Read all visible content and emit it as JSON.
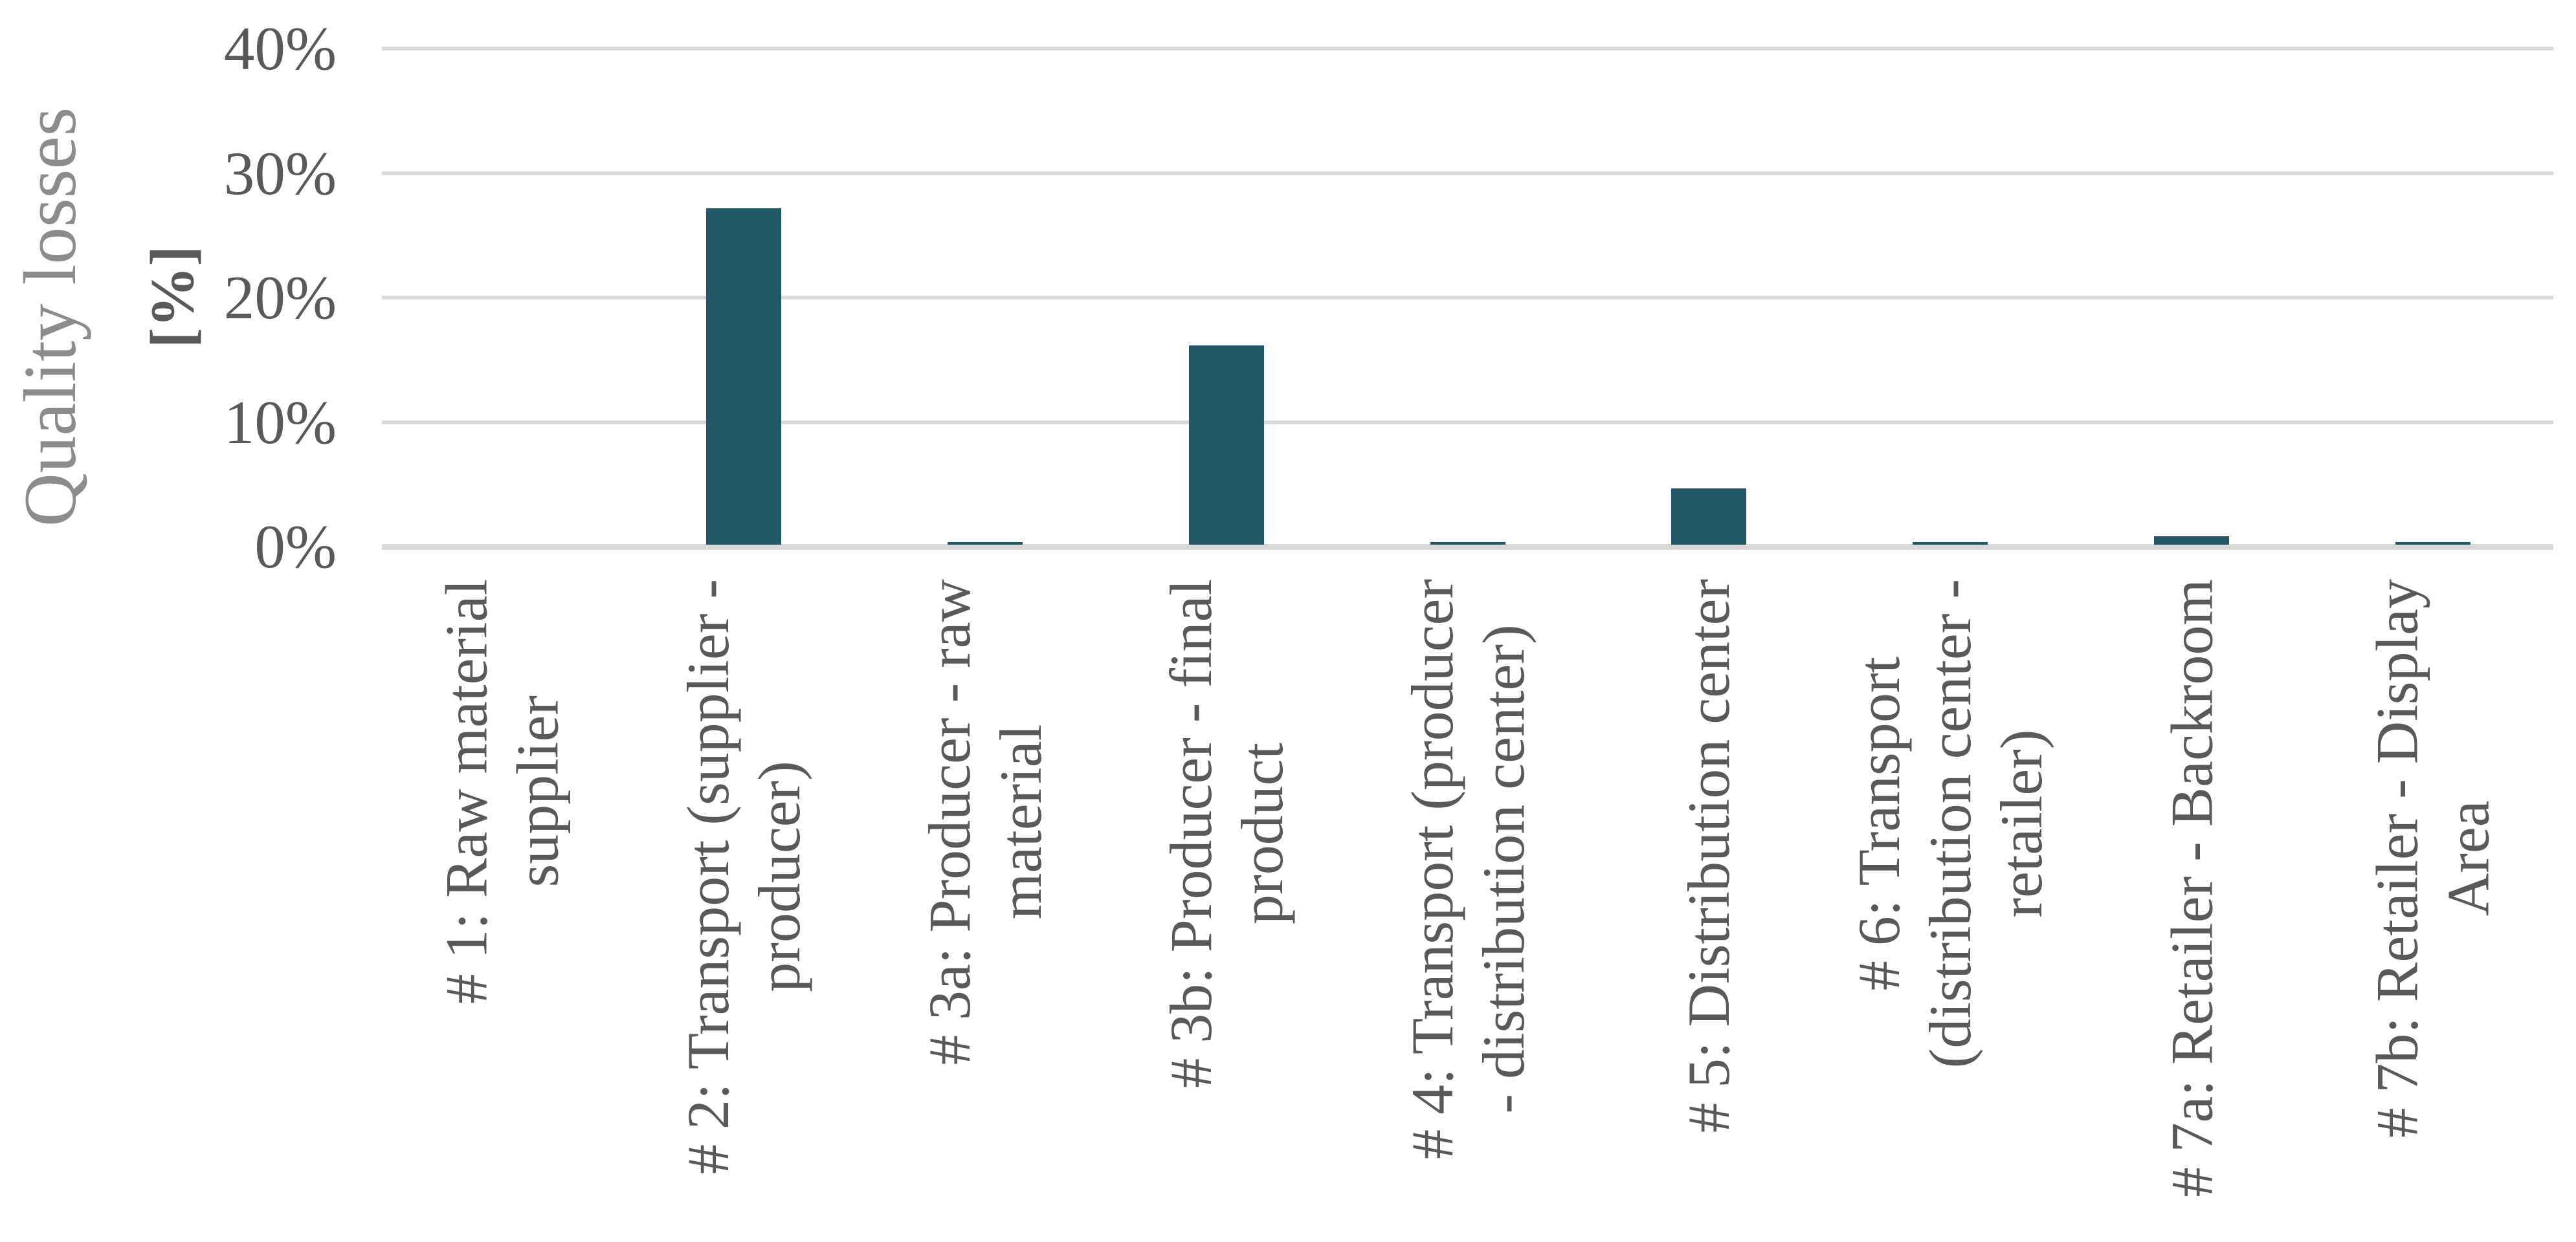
{
  "chart_data": {
    "type": "bar",
    "title": "",
    "ylabel": "Quality losses",
    "ylabel_unit": "[%]",
    "xlabel": "",
    "ylim": [
      0,
      40
    ],
    "ytick_step": 10,
    "ytick_labels": [
      "0%",
      "10%",
      "20%",
      "30%",
      "40%"
    ],
    "grid": true,
    "legend": "none",
    "bar_color": "#215A66",
    "gridline_color": "#D9D9D9",
    "tick_text_color": "#595959",
    "axis_title_color": "#8C8C8C",
    "categories": [
      "# 1: Raw material supplier",
      "# 2: Transport (supplier - producer)",
      "# 3a: Producer - raw material",
      "# 3b: Producer - final product",
      "# 4: Transport (producer - distribution center)",
      "# 5: Distribution center",
      "# 6: Transport (distribution center - retailer)",
      "# 7a: Retailer - Backroom",
      "# 7b: Retailer - Display Area"
    ],
    "category_display_lines": [
      [
        "# 1: Raw material",
        "supplier"
      ],
      [
        "# 2: Transport (supplier -",
        "producer)"
      ],
      [
        "# 3a: Producer - raw",
        "material"
      ],
      [
        "# 3b: Producer - final",
        "product"
      ],
      [
        "# 4: Transport (producer",
        "- distribution center)"
      ],
      [
        "# 5: Distribution center"
      ],
      [
        "# 6: Transport",
        "(distribution center -",
        "retailer)"
      ],
      [
        "# 7a: Retailer - Backroom"
      ],
      [
        "# 7b: Retailer - Display",
        "Area"
      ]
    ],
    "values": [
      0,
      27,
      0.2,
      16,
      0.2,
      4.5,
      0.2,
      0.7,
      0.2
    ]
  }
}
